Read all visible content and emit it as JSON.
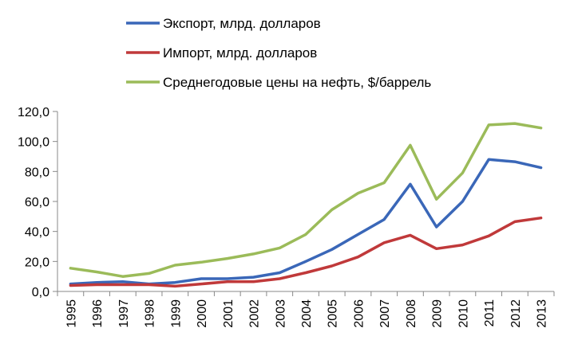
{
  "chart_data": {
    "type": "line",
    "title": "",
    "xlabel": "",
    "ylabel": "",
    "categories": [
      "1995",
      "1996",
      "1997",
      "1998",
      "1999",
      "2000",
      "2001",
      "2002",
      "2003",
      "2004",
      "2005",
      "2006",
      "2007",
      "2008",
      "2009",
      "2010",
      "2011",
      "2012",
      "2013"
    ],
    "y_ticks": [
      "0,0",
      "20,0",
      "40,0",
      "60,0",
      "80,0",
      "100,0",
      "120,0"
    ],
    "ylim": [
      0,
      120
    ],
    "grid": false,
    "legend_position": "top",
    "series": [
      {
        "name": "Экспорт, млрд. долларов",
        "color": "#3a67b8",
        "values": [
          5.0,
          6.0,
          6.5,
          5.0,
          6.0,
          8.5,
          8.5,
          9.5,
          12.5,
          20.0,
          28.0,
          38.0,
          48.0,
          71.5,
          43.0,
          60.0,
          88.0,
          86.5,
          82.5
        ]
      },
      {
        "name": "Импорт, млрд. долларов",
        "color": "#c0393a",
        "values": [
          4.0,
          4.5,
          4.5,
          4.5,
          3.5,
          5.0,
          6.5,
          6.5,
          8.5,
          12.5,
          17.0,
          23.0,
          32.5,
          37.5,
          28.5,
          31.0,
          37.0,
          46.5,
          49.0
        ]
      },
      {
        "name": "Среднегодовые цены на нефть, $/баррель",
        "color": "#9bbb59",
        "values": [
          15.5,
          13.0,
          10.0,
          12.0,
          17.5,
          19.5,
          22.0,
          25.0,
          29.0,
          38.0,
          54.5,
          65.5,
          72.5,
          97.5,
          61.5,
          79.0,
          111.0,
          112.0,
          109.0
        ]
      }
    ]
  }
}
